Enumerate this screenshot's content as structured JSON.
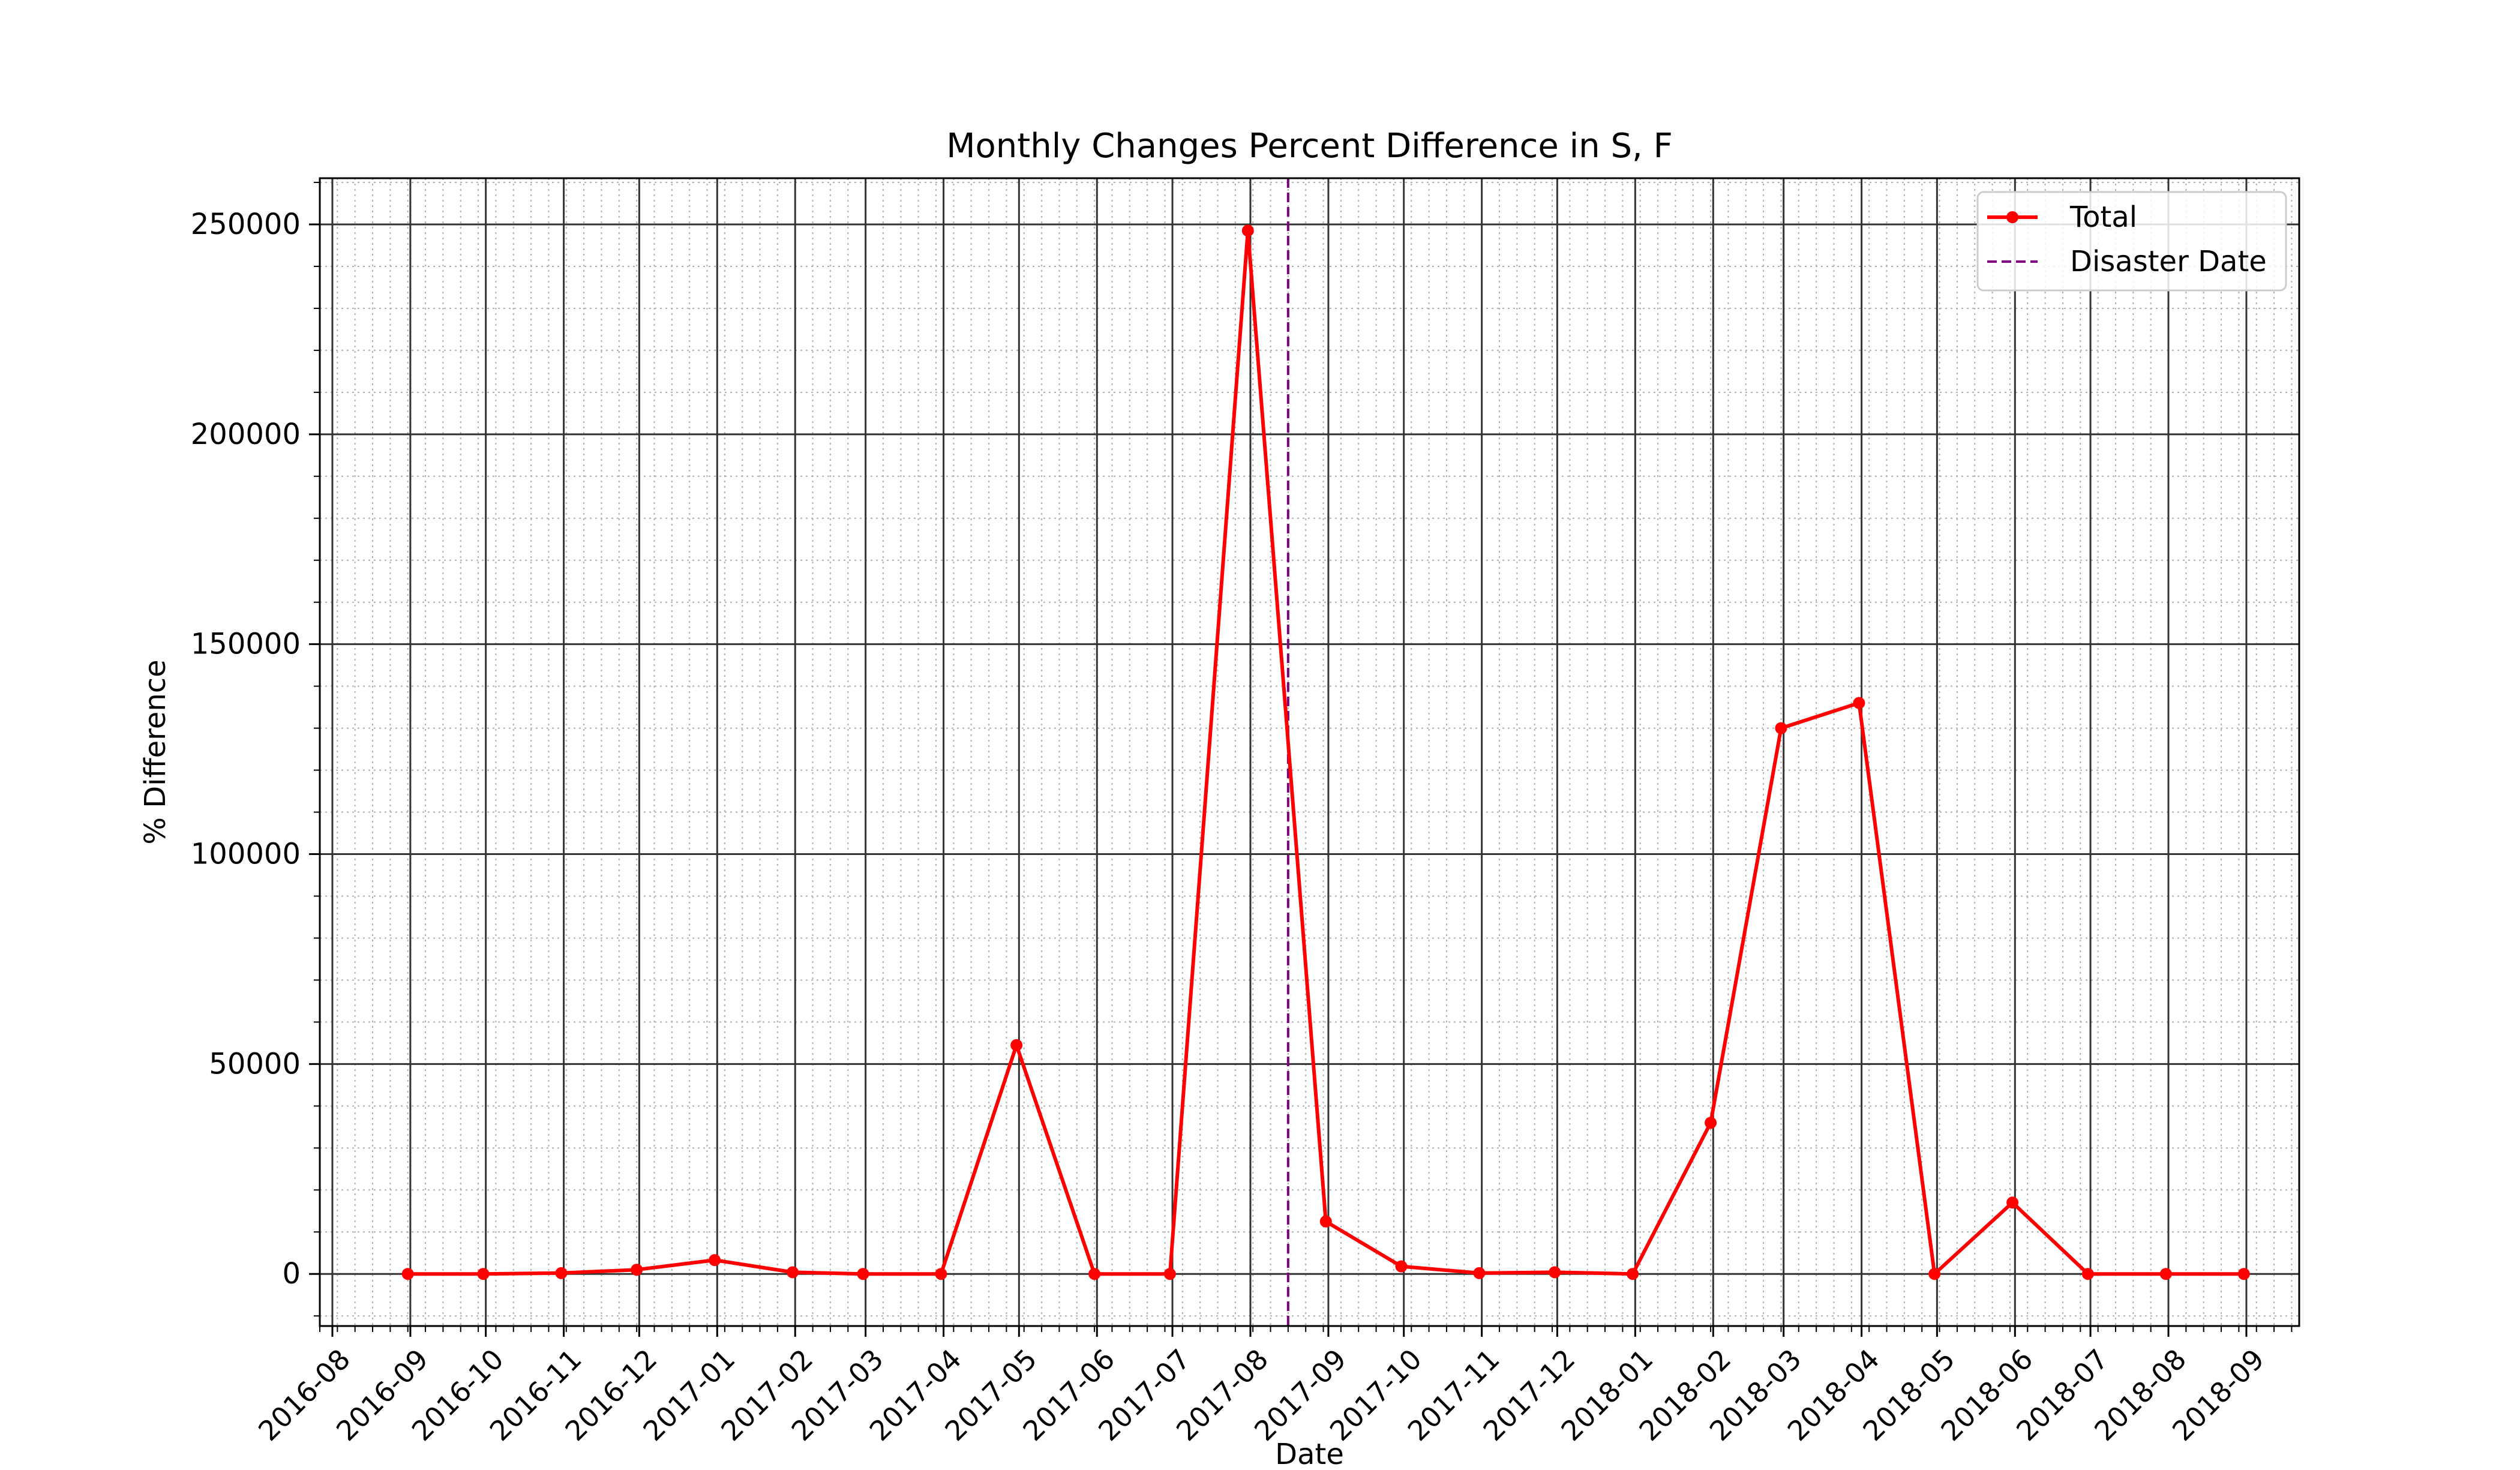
{
  "chart_data": {
    "type": "line",
    "title": "Monthly Changes Percent Difference in S, F",
    "xlabel": "Date",
    "ylabel": "% Difference",
    "x_ticks": [
      "2016-08",
      "2016-09",
      "2016-10",
      "2016-11",
      "2016-12",
      "2017-01",
      "2017-02",
      "2017-03",
      "2017-04",
      "2017-05",
      "2017-06",
      "2017-07",
      "2017-08",
      "2017-09",
      "2017-10",
      "2017-11",
      "2017-12",
      "2018-01",
      "2018-02",
      "2018-03",
      "2018-04",
      "2018-05",
      "2018-06",
      "2018-07",
      "2018-08",
      "2018-09"
    ],
    "y_ticks": [
      0,
      50000,
      100000,
      150000,
      200000,
      250000
    ],
    "xlim": [
      "2016-07-27",
      "2018-09-22"
    ],
    "ylim": [
      -12400,
      261000
    ],
    "grid": {
      "major": true,
      "minor": true
    },
    "legend_position": "top-right",
    "series": [
      {
        "name": "Total",
        "color": "#ff0000",
        "marker": "circle",
        "points": [
          {
            "x": "2016-08-31",
            "y": 0
          },
          {
            "x": "2016-09-30",
            "y": 0
          },
          {
            "x": "2016-10-31",
            "y": 200
          },
          {
            "x": "2016-11-30",
            "y": 1000
          },
          {
            "x": "2016-12-31",
            "y": 3300
          },
          {
            "x": "2017-01-31",
            "y": 400
          },
          {
            "x": "2017-02-28",
            "y": 0
          },
          {
            "x": "2017-03-31",
            "y": 0
          },
          {
            "x": "2017-04-30",
            "y": 54500
          },
          {
            "x": "2017-05-31",
            "y": 0
          },
          {
            "x": "2017-06-30",
            "y": 0
          },
          {
            "x": "2017-07-31",
            "y": 248500
          },
          {
            "x": "2017-08-31",
            "y": 12500
          },
          {
            "x": "2017-09-30",
            "y": 1800
          },
          {
            "x": "2017-10-31",
            "y": 200
          },
          {
            "x": "2017-11-30",
            "y": 400
          },
          {
            "x": "2017-12-31",
            "y": 0
          },
          {
            "x": "2018-01-31",
            "y": 36000
          },
          {
            "x": "2018-02-28",
            "y": 130000
          },
          {
            "x": "2018-03-31",
            "y": 136000
          },
          {
            "x": "2018-04-30",
            "y": 0
          },
          {
            "x": "2018-05-31",
            "y": 17000
          },
          {
            "x": "2018-06-30",
            "y": 0
          },
          {
            "x": "2018-07-31",
            "y": 0
          },
          {
            "x": "2018-08-31",
            "y": 0
          }
        ]
      }
    ],
    "reference_lines": [
      {
        "name": "Disaster Date",
        "orientation": "vertical",
        "x": "2017-08-16",
        "color": "#800080",
        "style": "dashed"
      }
    ]
  }
}
